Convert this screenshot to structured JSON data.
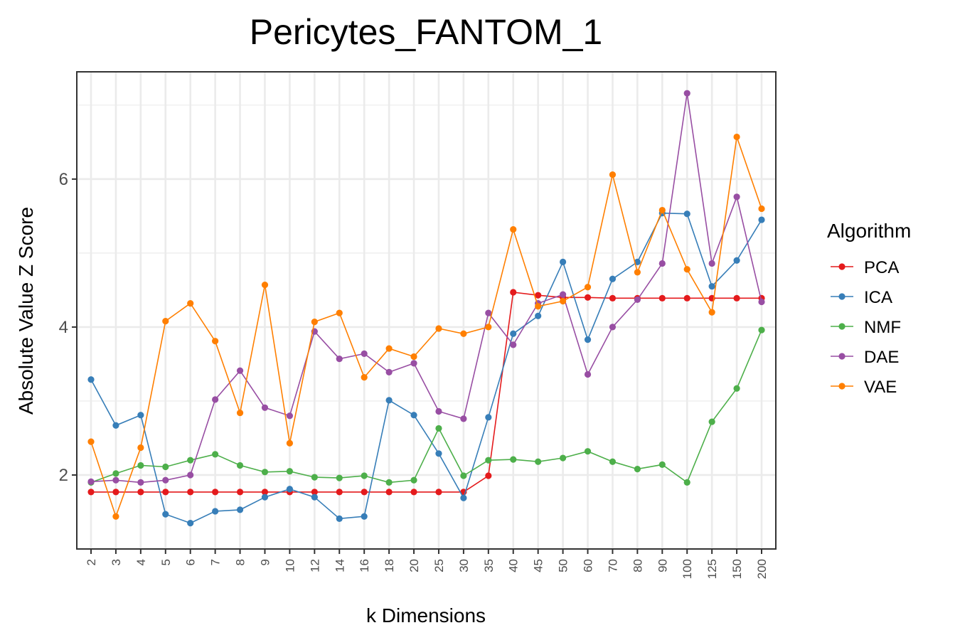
{
  "chart_data": {
    "type": "line",
    "title": "Pericytes_FANTOM_1",
    "xlabel": "k Dimensions",
    "ylabel": "Absolute Value Z Score",
    "categories": [
      "2",
      "3",
      "4",
      "5",
      "6",
      "7",
      "8",
      "9",
      "10",
      "12",
      "14",
      "16",
      "18",
      "20",
      "25",
      "30",
      "35",
      "40",
      "45",
      "50",
      "60",
      "70",
      "80",
      "90",
      "100",
      "125",
      "150",
      "200"
    ],
    "ylim": [
      1.0,
      7.45
    ],
    "yticks": [
      2,
      4,
      6
    ],
    "grid": true,
    "legend": {
      "title": "Algorithm",
      "placement": "right"
    },
    "series": [
      {
        "name": "PCA",
        "color": "#E41A1C",
        "values": [
          1.77,
          1.77,
          1.77,
          1.77,
          1.77,
          1.77,
          1.77,
          1.77,
          1.77,
          1.77,
          1.77,
          1.77,
          1.77,
          1.77,
          1.77,
          1.77,
          1.99,
          4.47,
          4.43,
          4.4,
          4.4,
          4.39,
          4.39,
          4.39,
          4.39,
          4.39,
          4.39,
          4.39
        ]
      },
      {
        "name": "ICA",
        "color": "#377EB8",
        "values": [
          3.29,
          2.67,
          2.81,
          1.47,
          1.35,
          1.51,
          1.53,
          1.7,
          1.81,
          1.7,
          1.41,
          1.44,
          3.01,
          2.81,
          2.29,
          1.69,
          2.78,
          3.91,
          4.15,
          4.88,
          3.83,
          4.65,
          4.88,
          5.54,
          5.53,
          4.55,
          4.9,
          5.45
        ]
      },
      {
        "name": "NMF",
        "color": "#4DAF4A",
        "values": [
          1.9,
          2.02,
          2.13,
          2.11,
          2.2,
          2.28,
          2.13,
          2.04,
          2.05,
          1.97,
          1.96,
          1.99,
          1.9,
          1.93,
          2.63,
          1.99,
          2.2,
          2.21,
          2.18,
          2.23,
          2.32,
          2.18,
          2.08,
          2.14,
          1.9,
          2.72,
          3.17,
          3.96
        ]
      },
      {
        "name": "DAE",
        "color": "#984EA3",
        "values": [
          1.91,
          1.93,
          1.9,
          1.93,
          2.0,
          3.02,
          3.41,
          2.91,
          2.8,
          3.94,
          3.57,
          3.64,
          3.39,
          3.51,
          2.86,
          2.76,
          4.19,
          3.76,
          4.32,
          4.44,
          3.36,
          4.0,
          4.37,
          4.86,
          7.16,
          4.86,
          5.76,
          4.34
        ]
      },
      {
        "name": "VAE",
        "color": "#FF7F00",
        "values": [
          2.45,
          1.44,
          2.37,
          4.08,
          4.32,
          3.81,
          2.84,
          4.57,
          2.43,
          4.07,
          4.19,
          3.32,
          3.71,
          3.6,
          3.98,
          3.91,
          4.0,
          5.32,
          4.28,
          4.35,
          4.54,
          6.06,
          4.74,
          5.58,
          4.78,
          4.2,
          6.57,
          5.6
        ]
      }
    ]
  }
}
